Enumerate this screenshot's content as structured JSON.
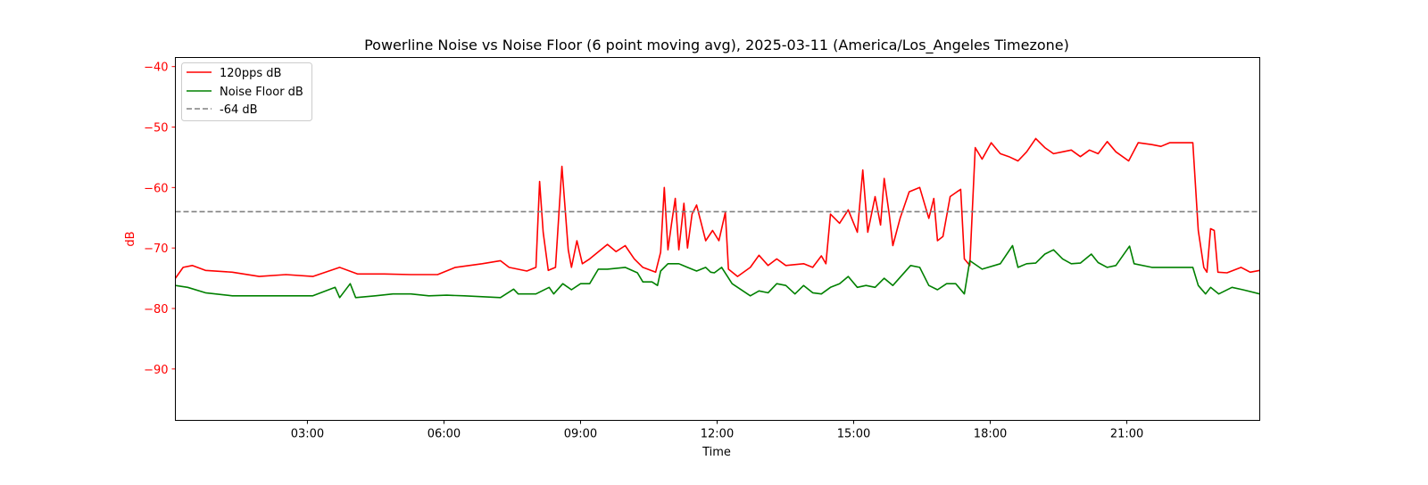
{
  "chart_data": {
    "type": "line",
    "title": "Powerline Noise vs Noise Floor (6 point moving avg), 2025-03-11 (America/Los_Angeles Timezone)",
    "xlabel": "Time",
    "ylabel": "dB",
    "xlim_hours": [
      0.1,
      23.92
    ],
    "ylim": [
      -98.5,
      -38.5
    ],
    "x_ticks": [
      {
        "value": 3,
        "label": "03:00"
      },
      {
        "value": 6,
        "label": "06:00"
      },
      {
        "value": 9,
        "label": "09:00"
      },
      {
        "value": 12,
        "label": "12:00"
      },
      {
        "value": 15,
        "label": "15:00"
      },
      {
        "value": 18,
        "label": "18:00"
      },
      {
        "value": 21,
        "label": "21:00"
      }
    ],
    "y_ticks": [
      {
        "value": -40,
        "label": "−40"
      },
      {
        "value": -50,
        "label": "−50"
      },
      {
        "value": -60,
        "label": "−60"
      },
      {
        "value": -70,
        "label": "−70"
      },
      {
        "value": -80,
        "label": "−80"
      },
      {
        "value": -90,
        "label": "−90"
      }
    ],
    "grid": false,
    "legend_position": "top-left",
    "tick_color": "#ff0000",
    "reference_line": {
      "name": "-64 dB",
      "value": -64,
      "color": "#808080",
      "style": "dashed"
    },
    "series": [
      {
        "name": "120pps dB",
        "color": "#ff0000",
        "points": [
          [
            0.1,
            -75.0
          ],
          [
            0.27,
            -73.2
          ],
          [
            0.47,
            -72.9
          ],
          [
            0.76,
            -73.7
          ],
          [
            1.35,
            -74.0
          ],
          [
            1.94,
            -74.7
          ],
          [
            2.53,
            -74.4
          ],
          [
            3.12,
            -74.7
          ],
          [
            3.71,
            -73.2
          ],
          [
            4.1,
            -74.3
          ],
          [
            4.69,
            -74.3
          ],
          [
            5.27,
            -74.4
          ],
          [
            5.86,
            -74.4
          ],
          [
            6.25,
            -73.2
          ],
          [
            6.84,
            -72.6
          ],
          [
            7.24,
            -72.1
          ],
          [
            7.43,
            -73.2
          ],
          [
            7.82,
            -73.8
          ],
          [
            8.02,
            -73.2
          ],
          [
            8.1,
            -59.0
          ],
          [
            8.18,
            -67.4
          ],
          [
            8.29,
            -73.7
          ],
          [
            8.45,
            -73.2
          ],
          [
            8.59,
            -56.5
          ],
          [
            8.73,
            -70.3
          ],
          [
            8.8,
            -73.2
          ],
          [
            8.92,
            -68.8
          ],
          [
            9.04,
            -72.6
          ],
          [
            9.2,
            -71.8
          ],
          [
            9.59,
            -69.4
          ],
          [
            9.78,
            -70.6
          ],
          [
            9.98,
            -69.6
          ],
          [
            10.18,
            -71.8
          ],
          [
            10.37,
            -73.2
          ],
          [
            10.65,
            -74.0
          ],
          [
            10.76,
            -70.7
          ],
          [
            10.84,
            -60.0
          ],
          [
            10.92,
            -70.3
          ],
          [
            11.0,
            -65.9
          ],
          [
            11.08,
            -61.8
          ],
          [
            11.16,
            -70.3
          ],
          [
            11.27,
            -62.6
          ],
          [
            11.35,
            -70.0
          ],
          [
            11.45,
            -64.4
          ],
          [
            11.55,
            -62.9
          ],
          [
            11.75,
            -68.8
          ],
          [
            11.9,
            -67.1
          ],
          [
            12.04,
            -68.8
          ],
          [
            12.18,
            -64.1
          ],
          [
            12.25,
            -73.5
          ],
          [
            12.45,
            -74.7
          ],
          [
            12.73,
            -73.2
          ],
          [
            12.92,
            -71.2
          ],
          [
            13.12,
            -72.9
          ],
          [
            13.31,
            -71.8
          ],
          [
            13.51,
            -72.9
          ],
          [
            13.9,
            -72.6
          ],
          [
            14.1,
            -73.2
          ],
          [
            14.29,
            -71.3
          ],
          [
            14.39,
            -72.6
          ],
          [
            14.49,
            -64.4
          ],
          [
            14.69,
            -65.9
          ],
          [
            14.88,
            -63.7
          ],
          [
            15.08,
            -67.4
          ],
          [
            15.2,
            -57.1
          ],
          [
            15.31,
            -67.4
          ],
          [
            15.47,
            -61.5
          ],
          [
            15.59,
            -66.2
          ],
          [
            15.67,
            -58.5
          ],
          [
            15.78,
            -64.4
          ],
          [
            15.86,
            -69.6
          ],
          [
            16.02,
            -65.1
          ],
          [
            16.22,
            -60.7
          ],
          [
            16.45,
            -60.0
          ],
          [
            16.65,
            -65.1
          ],
          [
            16.76,
            -61.8
          ],
          [
            16.84,
            -68.8
          ],
          [
            16.96,
            -68.1
          ],
          [
            17.12,
            -61.5
          ],
          [
            17.27,
            -60.7
          ],
          [
            17.35,
            -60.3
          ],
          [
            17.43,
            -71.8
          ],
          [
            17.55,
            -72.9
          ],
          [
            17.67,
            -53.4
          ],
          [
            17.82,
            -55.3
          ],
          [
            18.02,
            -52.6
          ],
          [
            18.22,
            -54.4
          ],
          [
            18.41,
            -54.9
          ],
          [
            18.61,
            -55.6
          ],
          [
            18.8,
            -54.1
          ],
          [
            19.0,
            -51.9
          ],
          [
            19.2,
            -53.4
          ],
          [
            19.39,
            -54.4
          ],
          [
            19.59,
            -54.1
          ],
          [
            19.78,
            -53.8
          ],
          [
            19.98,
            -54.9
          ],
          [
            20.18,
            -53.8
          ],
          [
            20.37,
            -54.4
          ],
          [
            20.57,
            -52.4
          ],
          [
            20.76,
            -54.1
          ],
          [
            21.04,
            -55.6
          ],
          [
            21.25,
            -52.6
          ],
          [
            21.55,
            -52.9
          ],
          [
            21.75,
            -53.2
          ],
          [
            21.94,
            -52.6
          ],
          [
            22.14,
            -52.6
          ],
          [
            22.45,
            -52.6
          ],
          [
            22.57,
            -67.1
          ],
          [
            22.69,
            -73.2
          ],
          [
            22.76,
            -74.0
          ],
          [
            22.84,
            -66.8
          ],
          [
            22.92,
            -67.1
          ],
          [
            23.0,
            -74.0
          ],
          [
            23.2,
            -74.1
          ],
          [
            23.51,
            -73.2
          ],
          [
            23.71,
            -74.0
          ],
          [
            23.92,
            -73.7
          ]
        ]
      },
      {
        "name": "Noise Floor dB",
        "color": "#008000",
        "points": [
          [
            0.1,
            -76.2
          ],
          [
            0.37,
            -76.5
          ],
          [
            0.76,
            -77.4
          ],
          [
            1.35,
            -77.9
          ],
          [
            2.14,
            -77.9
          ],
          [
            3.12,
            -77.9
          ],
          [
            3.61,
            -76.5
          ],
          [
            3.71,
            -78.2
          ],
          [
            3.94,
            -75.9
          ],
          [
            4.06,
            -78.2
          ],
          [
            4.49,
            -77.9
          ],
          [
            4.88,
            -77.6
          ],
          [
            5.27,
            -77.6
          ],
          [
            5.67,
            -77.9
          ],
          [
            6.06,
            -77.8
          ],
          [
            6.45,
            -77.9
          ],
          [
            7.24,
            -78.2
          ],
          [
            7.53,
            -76.8
          ],
          [
            7.63,
            -77.6
          ],
          [
            8.02,
            -77.6
          ],
          [
            8.31,
            -76.5
          ],
          [
            8.41,
            -77.6
          ],
          [
            8.61,
            -75.9
          ],
          [
            8.8,
            -76.9
          ],
          [
            9.0,
            -75.9
          ],
          [
            9.2,
            -75.9
          ],
          [
            9.39,
            -73.5
          ],
          [
            9.59,
            -73.5
          ],
          [
            9.98,
            -73.2
          ],
          [
            10.25,
            -74.1
          ],
          [
            10.37,
            -75.6
          ],
          [
            10.57,
            -75.6
          ],
          [
            10.69,
            -76.2
          ],
          [
            10.76,
            -73.8
          ],
          [
            10.92,
            -72.6
          ],
          [
            11.16,
            -72.6
          ],
          [
            11.35,
            -73.2
          ],
          [
            11.55,
            -73.8
          ],
          [
            11.75,
            -73.2
          ],
          [
            11.86,
            -74.0
          ],
          [
            11.94,
            -74.1
          ],
          [
            12.1,
            -73.2
          ],
          [
            12.33,
            -75.9
          ],
          [
            12.73,
            -77.9
          ],
          [
            12.92,
            -77.1
          ],
          [
            13.12,
            -77.4
          ],
          [
            13.31,
            -75.9
          ],
          [
            13.51,
            -76.2
          ],
          [
            13.71,
            -77.6
          ],
          [
            13.9,
            -76.2
          ],
          [
            14.1,
            -77.4
          ],
          [
            14.29,
            -77.6
          ],
          [
            14.49,
            -76.5
          ],
          [
            14.69,
            -75.9
          ],
          [
            14.88,
            -74.7
          ],
          [
            15.08,
            -76.5
          ],
          [
            15.27,
            -76.2
          ],
          [
            15.47,
            -76.5
          ],
          [
            15.67,
            -75.0
          ],
          [
            15.86,
            -76.2
          ],
          [
            16.25,
            -72.9
          ],
          [
            16.45,
            -73.2
          ],
          [
            16.65,
            -76.2
          ],
          [
            16.84,
            -76.9
          ],
          [
            17.04,
            -75.9
          ],
          [
            17.24,
            -75.9
          ],
          [
            17.43,
            -77.6
          ],
          [
            17.55,
            -72.1
          ],
          [
            17.82,
            -73.5
          ],
          [
            18.22,
            -72.6
          ],
          [
            18.49,
            -69.6
          ],
          [
            18.61,
            -73.2
          ],
          [
            18.8,
            -72.6
          ],
          [
            19.0,
            -72.5
          ],
          [
            19.2,
            -71.0
          ],
          [
            19.39,
            -70.3
          ],
          [
            19.59,
            -71.8
          ],
          [
            19.78,
            -72.6
          ],
          [
            19.98,
            -72.5
          ],
          [
            20.22,
            -71.0
          ],
          [
            20.37,
            -72.4
          ],
          [
            20.57,
            -73.2
          ],
          [
            20.76,
            -72.9
          ],
          [
            21.06,
            -69.7
          ],
          [
            21.16,
            -72.6
          ],
          [
            21.55,
            -73.2
          ],
          [
            22.14,
            -73.2
          ],
          [
            22.45,
            -73.2
          ],
          [
            22.57,
            -76.2
          ],
          [
            22.73,
            -77.6
          ],
          [
            22.84,
            -76.5
          ],
          [
            23.02,
            -77.6
          ],
          [
            23.31,
            -76.5
          ],
          [
            23.55,
            -76.9
          ],
          [
            23.92,
            -77.6
          ]
        ]
      }
    ]
  }
}
